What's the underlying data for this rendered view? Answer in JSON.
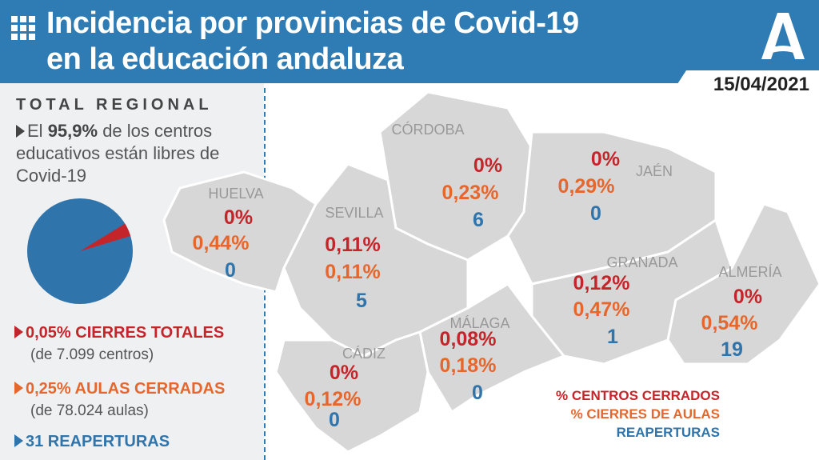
{
  "header": {
    "title_line1": "Incidencia por provincias de Covid-19",
    "title_line2": "en la educación andaluza",
    "date": "15/04/2021",
    "logo": "A"
  },
  "summary": {
    "heading": "TOTAL REGIONAL",
    "text_pre": "El ",
    "text_bold": "95,9%",
    "text_post": " de los centros educativos están libres de Covid-19",
    "stats": [
      {
        "value": "0,05% CIERRES TOTALES",
        "note": "(de 7.099 centros)"
      },
      {
        "value": "0,25% AULAS CERRADAS",
        "note": "(de 78.024 aulas)"
      },
      {
        "value": "31 REAPERTURAS"
      }
    ],
    "pie_free_percent": 95.9
  },
  "provinces": [
    {
      "name": "HUELVA",
      "closed": "0%",
      "classrooms": "0,44%",
      "reopened": "0"
    },
    {
      "name": "SEVILLA",
      "closed": "0,11%",
      "classrooms": "0,11%",
      "reopened": "5"
    },
    {
      "name": "CÓRDOBA",
      "closed": "0%",
      "classrooms": "0,23%",
      "reopened": "6"
    },
    {
      "name": "JAÉN",
      "closed": "0%",
      "classrooms": "0,29%",
      "reopened": "0"
    },
    {
      "name": "GRANADA",
      "closed": "0,12%",
      "classrooms": "0,47%",
      "reopened": "1"
    },
    {
      "name": "ALMERÍA",
      "closed": "0%",
      "classrooms": "0,54%",
      "reopened": "19"
    },
    {
      "name": "MÁLAGA",
      "closed": "0,08%",
      "classrooms": "0,18%",
      "reopened": "0"
    },
    {
      "name": "CÁDIZ",
      "closed": "0%",
      "classrooms": "0,12%",
      "reopened": "0"
    }
  ],
  "legend": {
    "closed": "% CENTROS CERRADOS",
    "classrooms": "% CIERRES DE AULAS",
    "reopened": "REAPERTURAS"
  },
  "colors": {
    "header": "#2f7bb3",
    "red": "#c4252a",
    "orange": "#e5672e",
    "blue": "#2f74ab"
  }
}
